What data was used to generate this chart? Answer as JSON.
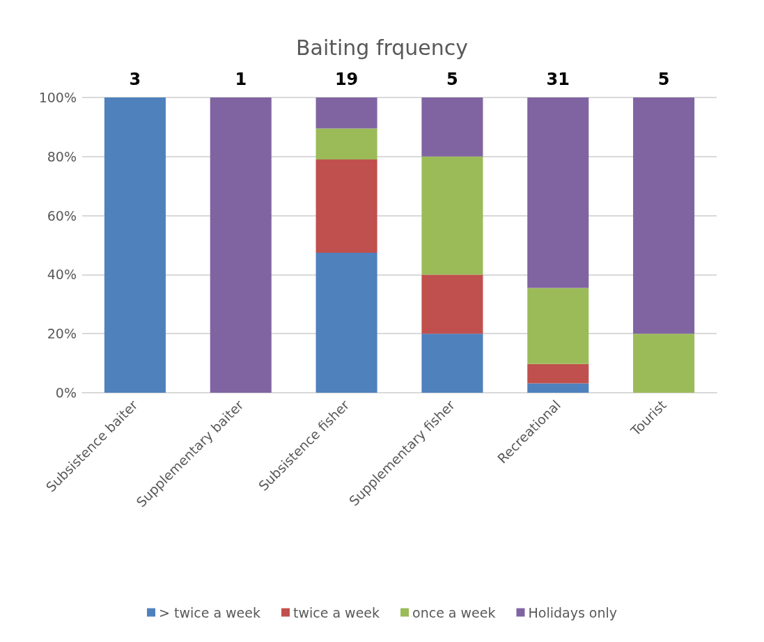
{
  "chart_data": {
    "type": "bar",
    "title": "Baiting frquency",
    "stacked": true,
    "categories": [
      "Subsistence baiter",
      "Supplementary baiter",
      "Subsistence fisher",
      "Supplementary fisher",
      "Recreational",
      "Tourist"
    ],
    "series": [
      {
        "name": "> twice a week",
        "color": "#4f81bd",
        "values": [
          100,
          0,
          47.4,
          20,
          3.2,
          0
        ]
      },
      {
        "name": "twice a week",
        "color": "#c0504d",
        "values": [
          0,
          0,
          31.6,
          20,
          6.5,
          0
        ]
      },
      {
        "name": "once a week",
        "color": "#9bbb59",
        "values": [
          0,
          0,
          10.5,
          40,
          25.8,
          20
        ]
      },
      {
        "name": "Holidays only",
        "color": "#8064a2",
        "values": [
          0,
          100,
          10.5,
          20,
          64.5,
          80
        ]
      }
    ],
    "ylim": [
      0,
      100
    ],
    "yticks": [
      {
        "value": 0,
        "label": "0%"
      },
      {
        "value": 20,
        "label": "20%"
      },
      {
        "value": 40,
        "label": "40%"
      },
      {
        "value": 60,
        "label": "60%"
      },
      {
        "value": 80,
        "label": "80%"
      },
      {
        "value": 100,
        "label": "100%"
      }
    ],
    "grid": "y",
    "legend": "bottom",
    "annotations": [
      {
        "text": "3",
        "x": "Subsistence baiter",
        "y": 100
      },
      {
        "text": "1",
        "x": "Supplementary baiter",
        "y": 100
      },
      {
        "text": "19",
        "x": "Subsistence fisher",
        "y": 100
      },
      {
        "text": "5",
        "x": "Supplementary fisher",
        "y": 100
      },
      {
        "text": "31",
        "x": "Recreational",
        "y": 100
      },
      {
        "text": "5",
        "x": "Tourist",
        "y": 100
      }
    ]
  }
}
